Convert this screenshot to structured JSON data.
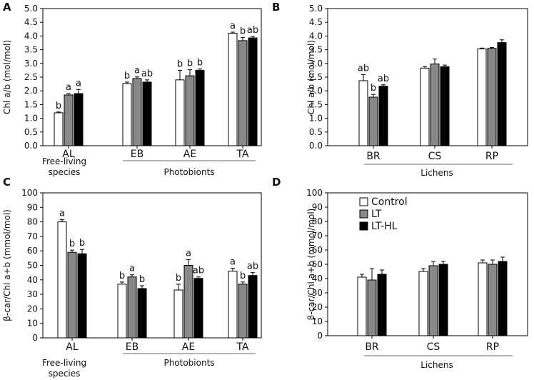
{
  "panels": [
    {
      "letter": "A"
    },
    {
      "letter": "B"
    },
    {
      "letter": "C"
    },
    {
      "letter": "D"
    }
  ],
  "groups": {
    "free_living_line1": "Free-living",
    "free_living_line2": "species",
    "photobionts": "Photobionts",
    "lichens": "Lichens"
  },
  "legend": [
    {
      "label": "Control",
      "color": "#ffffff"
    },
    {
      "label": "LT",
      "color": "#888888"
    },
    {
      "label": "LT-HL",
      "color": "#000000"
    }
  ],
  "chart_data": [
    {
      "panel": "A",
      "type": "bar",
      "ylabel": "Chl a/b (mol/mol)",
      "ylim": [
        0,
        5.0
      ],
      "yticks": [
        "0.0",
        "0.5",
        "1.0",
        "1.5",
        "2.0",
        "2.5",
        "3.0",
        "3.5",
        "4.0",
        "4.5",
        "5.0"
      ],
      "categories": [
        "AL",
        "EB",
        "AE",
        "TA"
      ],
      "series": [
        {
          "name": "Control",
          "color": "#ffffff",
          "values": [
            1.2,
            2.27,
            2.4,
            4.1
          ],
          "errors": [
            0.03,
            0.05,
            0.35,
            0.04
          ],
          "letters": [
            "b",
            "b",
            "b",
            "a"
          ]
        },
        {
          "name": "LT",
          "color": "#888888",
          "values": [
            1.85,
            2.45,
            2.55,
            3.83
          ],
          "errors": [
            0.05,
            0.06,
            0.22,
            0.12
          ],
          "letters": [
            "a",
            "a",
            "b",
            "b"
          ]
        },
        {
          "name": "LT-HL",
          "color": "#000000",
          "values": [
            1.9,
            2.32,
            2.75,
            3.93
          ],
          "errors": [
            0.15,
            0.08,
            0.05,
            0.05
          ],
          "letters": [
            "a",
            "ab",
            "b",
            "ab"
          ]
        }
      ]
    },
    {
      "panel": "B",
      "type": "bar",
      "ylabel": "Chl a/b (mol/mol)",
      "ylim": [
        0,
        5.0
      ],
      "yticks": [
        "0.0",
        "0.5",
        "1.0",
        "1.5",
        "2.0",
        "2.5",
        "3.0",
        "3.5",
        "4.0",
        "4.5",
        "5.0"
      ],
      "categories": [
        "BR",
        "CS",
        "RP"
      ],
      "series": [
        {
          "name": "Control",
          "color": "#ffffff",
          "values": [
            2.37,
            2.83,
            3.53
          ],
          "errors": [
            0.22,
            0.05,
            0.03
          ],
          "letters": [
            "ab",
            "",
            ""
          ]
        },
        {
          "name": "LT",
          "color": "#888888",
          "values": [
            1.77,
            2.98,
            3.55
          ],
          "errors": [
            0.1,
            0.18,
            0.03
          ],
          "letters": [
            "b",
            "",
            ""
          ]
        },
        {
          "name": "LT-HL",
          "color": "#000000",
          "values": [
            2.17,
            2.88,
            3.76
          ],
          "errors": [
            0.05,
            0.06,
            0.1
          ],
          "letters": [
            "ab",
            "",
            ""
          ]
        }
      ]
    },
    {
      "panel": "C",
      "type": "bar",
      "ylabel": "β-car/Chl a+b (mmol/mol)",
      "ylim": [
        0,
        100
      ],
      "yticks": [
        "0",
        "10",
        "20",
        "30",
        "40",
        "50",
        "60",
        "70",
        "80",
        "90",
        "100"
      ],
      "categories": [
        "AL",
        "EB",
        "AE",
        "TA"
      ],
      "series": [
        {
          "name": "Control",
          "color": "#ffffff",
          "values": [
            80,
            37,
            33,
            46
          ],
          "errors": [
            1.5,
            1.5,
            4,
            2
          ],
          "letters": [
            "a",
            "b",
            "b",
            "a"
          ]
        },
        {
          "name": "LT",
          "color": "#888888",
          "values": [
            59,
            42,
            50,
            37
          ],
          "errors": [
            1.5,
            1.5,
            4,
            1.5
          ],
          "letters": [
            "b",
            "a",
            "a",
            "b"
          ]
        },
        {
          "name": "LT-HL",
          "color": "#000000",
          "values": [
            58,
            34,
            41,
            43
          ],
          "errors": [
            3,
            2,
            1,
            2
          ],
          "letters": [
            "b",
            "b",
            "ab",
            "ab"
          ]
        }
      ]
    },
    {
      "panel": "D",
      "type": "bar",
      "ylabel": "β-car/Chl a+b (mmol/mol)",
      "ylim": [
        0,
        100
      ],
      "yticks": [
        "0",
        "10",
        "20",
        "30",
        "40",
        "50",
        "60",
        "70",
        "80",
        "90",
        "100"
      ],
      "categories": [
        "BR",
        "CS",
        "RP"
      ],
      "series": [
        {
          "name": "Control",
          "color": "#ffffff",
          "values": [
            41,
            45,
            51
          ],
          "errors": [
            2,
            2,
            2
          ],
          "letters": [
            "",
            "",
            ""
          ]
        },
        {
          "name": "LT",
          "color": "#888888",
          "values": [
            39,
            49,
            50
          ],
          "errors": [
            8,
            3,
            3
          ],
          "letters": [
            "",
            "",
            ""
          ]
        },
        {
          "name": "LT-HL",
          "color": "#000000",
          "values": [
            43,
            50,
            52
          ],
          "errors": [
            3,
            2,
            3
          ],
          "letters": [
            "",
            "",
            ""
          ]
        }
      ]
    }
  ]
}
